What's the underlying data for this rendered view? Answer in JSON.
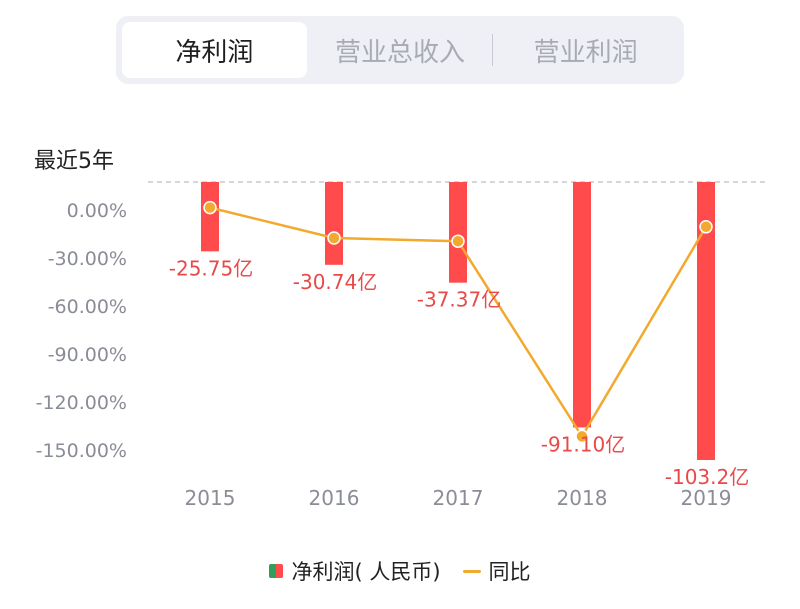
{
  "tabs": [
    {
      "label": "净利润",
      "active": true
    },
    {
      "label": "营业总收入",
      "active": false
    },
    {
      "label": "营业利润",
      "active": false
    }
  ],
  "period_label": "最近5年",
  "colors": {
    "bar": "#ff4b4b",
    "bar_alt": "#2fa05a",
    "line": "#f2a92e",
    "label": "#e84a4a",
    "tick": "#8a8d95",
    "ref_line": "#c8c8c8"
  },
  "chart_data": {
    "type": "bar",
    "categories": [
      "2015",
      "2016",
      "2017",
      "2018",
      "2019"
    ],
    "series": [
      {
        "name": "净利润( 人民币)",
        "type": "bar",
        "values": [
          -25.75,
          -30.74,
          -37.37,
          -91.1,
          -103.2
        ],
        "labels": [
          "-25.75亿",
          "-30.74亿",
          "-37.37亿",
          "-91.10亿",
          "-103.2亿"
        ]
      },
      {
        "name": "同比",
        "type": "line",
        "values": [
          1.5,
          -17.5,
          -19.5,
          -141.5,
          -10.5
        ]
      }
    ],
    "ylim": [
      -160,
      10
    ],
    "yticks": [
      0,
      -30,
      -60,
      -90,
      -120,
      -150
    ],
    "ytick_labels": [
      "0.00%",
      "-30.00%",
      "-60.00%",
      "-90.00%",
      "-120.00%",
      "-150.00%"
    ],
    "bar_scale_max": 103.2,
    "grid": false,
    "legend_position": "bottom-center"
  },
  "legend": [
    {
      "label": "净利润( 人民币)",
      "kind": "bar"
    },
    {
      "label": "同比",
      "kind": "line"
    }
  ]
}
